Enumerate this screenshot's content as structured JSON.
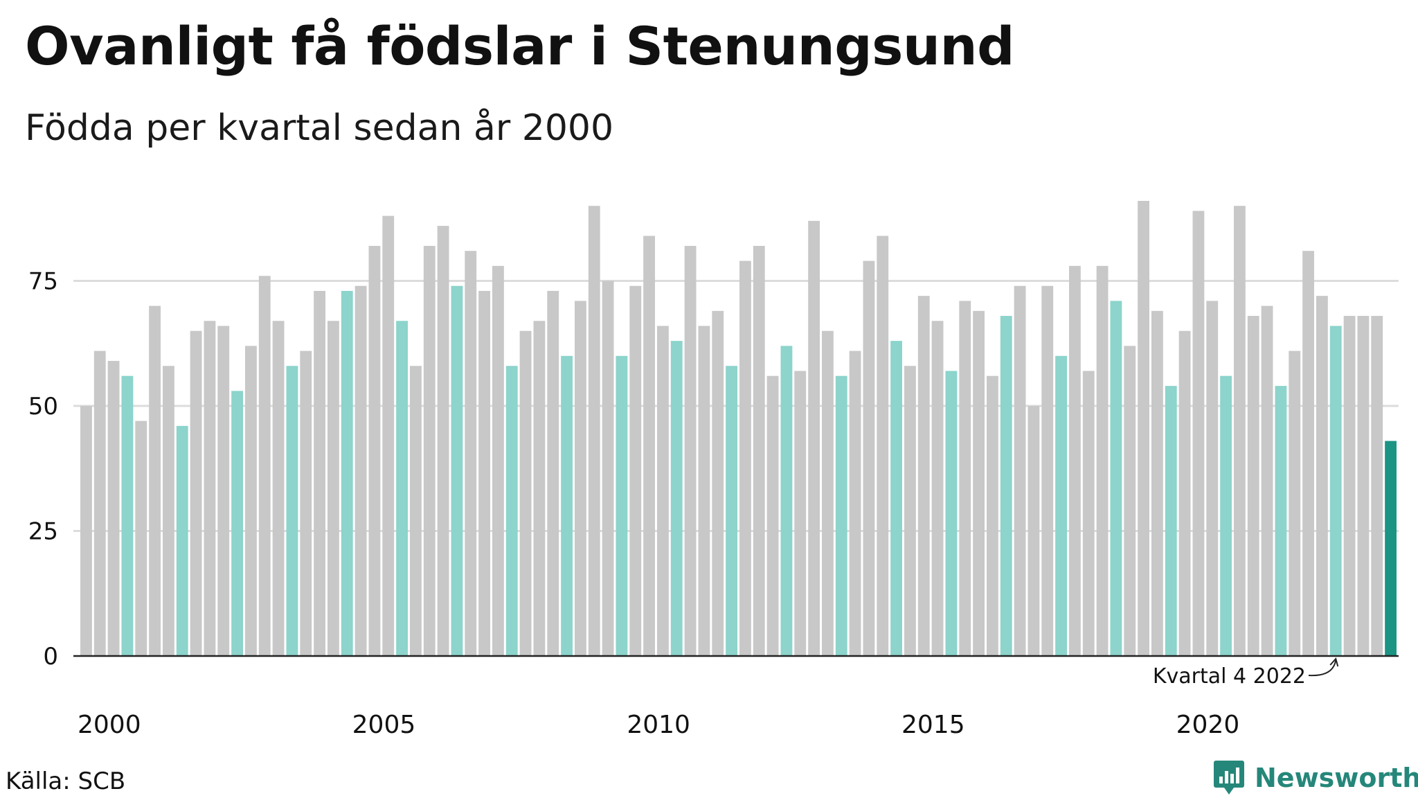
{
  "header": {
    "title": "Ovanligt få födslar i Stenungsund",
    "subtitle": "Födda per kvartal sedan år 2000"
  },
  "footer": {
    "source": "Källa: SCB",
    "brand": "Newsworthy"
  },
  "colors": {
    "default_bar": "#c8c8c8",
    "q4_bar": "#8cd4cc",
    "current_bar": "#1b9484",
    "grid": "#dcdcdc",
    "axis": "#222222",
    "brand": "#25877a"
  },
  "chart_data": {
    "type": "bar",
    "title": "Ovanligt få födslar i Stenungsund",
    "subtitle": "Födda per kvartal sedan år 2000",
    "xlabel": "",
    "ylabel": "",
    "ylim": [
      0,
      95
    ],
    "yticks": [
      0,
      25,
      50,
      75
    ],
    "xtick_labels": [
      "2000",
      "2005",
      "2010",
      "2015",
      "2020"
    ],
    "grid": true,
    "legend": "none",
    "highlight_color_rule": "Kvartal 4 bars highlighted",
    "annotation": {
      "label": "Kvartal 4 2022",
      "target": "2022 K4"
    },
    "quarters_per_year": 4,
    "start_year": 2000,
    "categories": [
      "2000 K1",
      "2000 K2",
      "2000 K3",
      "2000 K4",
      "2001 K1",
      "2001 K2",
      "2001 K3",
      "2001 K4",
      "2002 K1",
      "2002 K2",
      "2002 K3",
      "2002 K4",
      "2003 K1",
      "2003 K2",
      "2003 K3",
      "2003 K4",
      "2004 K1",
      "2004 K2",
      "2004 K3",
      "2004 K4",
      "2005 K1",
      "2005 K2",
      "2005 K3",
      "2005 K4",
      "2006 K1",
      "2006 K2",
      "2006 K3",
      "2006 K4",
      "2007 K1",
      "2007 K2",
      "2007 K3",
      "2007 K4",
      "2008 K1",
      "2008 K2",
      "2008 K3",
      "2008 K4",
      "2009 K1",
      "2009 K2",
      "2009 K3",
      "2009 K4",
      "2010 K1",
      "2010 K2",
      "2010 K3",
      "2010 K4",
      "2011 K1",
      "2011 K2",
      "2011 K3",
      "2011 K4",
      "2012 K1",
      "2012 K2",
      "2012 K3",
      "2012 K4",
      "2013 K1",
      "2013 K2",
      "2013 K3",
      "2013 K4",
      "2014 K1",
      "2014 K2",
      "2014 K3",
      "2014 K4",
      "2015 K1",
      "2015 K2",
      "2015 K3",
      "2015 K4",
      "2016 K1",
      "2016 K2",
      "2016 K3",
      "2016 K4",
      "2017 K1",
      "2017 K2",
      "2017 K3",
      "2017 K4",
      "2018 K1",
      "2018 K2",
      "2018 K3",
      "2018 K4",
      "2019 K1",
      "2019 K2",
      "2019 K3",
      "2019 K4",
      "2020 K1",
      "2020 K2",
      "2020 K3",
      "2020 K4",
      "2021 K1",
      "2021 K2",
      "2021 K3",
      "2021 K4",
      "2022 K1",
      "2022 K2",
      "2022 K3",
      "2022 K4",
      "2023 K1",
      "2023 K2",
      "2023 K3",
      "2023 K4"
    ],
    "values": [
      50,
      61,
      59,
      56,
      47,
      70,
      58,
      46,
      65,
      67,
      66,
      53,
      62,
      76,
      67,
      58,
      61,
      73,
      67,
      73,
      74,
      82,
      88,
      67,
      58,
      82,
      86,
      74,
      81,
      73,
      78,
      58,
      65,
      67,
      73,
      60,
      71,
      90,
      75,
      60,
      74,
      84,
      66,
      63,
      82,
      66,
      69,
      58,
      79,
      82,
      56,
      62,
      57,
      87,
      65,
      56,
      61,
      79,
      84,
      63,
      58,
      72,
      67,
      57,
      71,
      69,
      56,
      68,
      74,
      50,
      74,
      60,
      78,
      57,
      78,
      71,
      62,
      91,
      69,
      54,
      65,
      89,
      71,
      56,
      90,
      68,
      70,
      54,
      61,
      81,
      72,
      66,
      68,
      68,
      68,
      43
    ],
    "highlight": "last"
  }
}
